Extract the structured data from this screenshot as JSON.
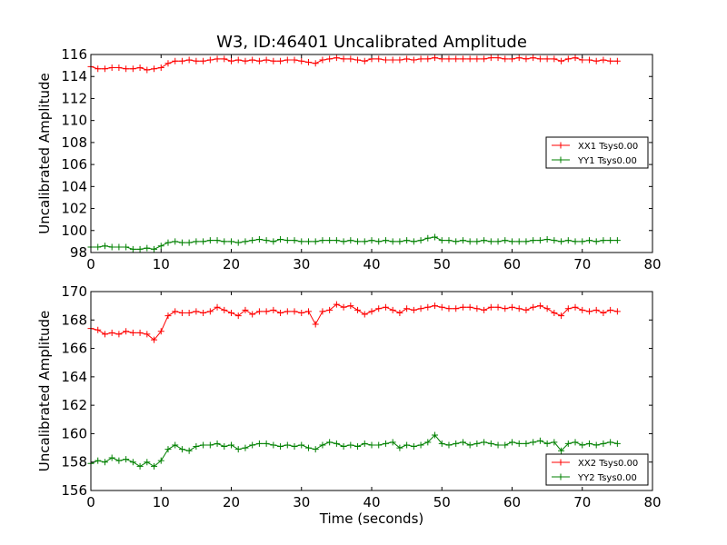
{
  "chart_data": [
    {
      "type": "line",
      "title": "W3, ID:46401 Uncalibrated Amplitude",
      "xlabel": "",
      "ylabel": "Uncalibrated Amplitude",
      "xlim": [
        0,
        80
      ],
      "ylim": [
        98,
        116
      ],
      "x_ticks": [
        "0",
        "10",
        "20",
        "30",
        "40",
        "50",
        "60",
        "70",
        "80"
      ],
      "y_ticks": [
        "98",
        "100",
        "102",
        "104",
        "106",
        "108",
        "110",
        "112",
        "114",
        "116"
      ],
      "grid": false,
      "legend_position": "right",
      "marker": "+",
      "series": [
        {
          "name": "XX1 Tsys0.00",
          "color": "#ff0000",
          "x": [
            0,
            1,
            2,
            3,
            4,
            5,
            6,
            7,
            8,
            9,
            10,
            11,
            12,
            13,
            14,
            15,
            16,
            17,
            18,
            19,
            20,
            21,
            22,
            23,
            24,
            25,
            26,
            27,
            28,
            29,
            30,
            31,
            32,
            33,
            34,
            35,
            36,
            37,
            38,
            39,
            40,
            41,
            42,
            43,
            44,
            45,
            46,
            47,
            48,
            49,
            50,
            51,
            52,
            53,
            54,
            55,
            56,
            57,
            58,
            59,
            60,
            61,
            62,
            63,
            64,
            65,
            66,
            67,
            68,
            69,
            70,
            71,
            72,
            73,
            74,
            75
          ],
          "values": [
            114.9,
            114.7,
            114.7,
            114.8,
            114.8,
            114.7,
            114.7,
            114.8,
            114.6,
            114.7,
            114.8,
            115.2,
            115.4,
            115.4,
            115.5,
            115.4,
            115.4,
            115.5,
            115.6,
            115.6,
            115.4,
            115.5,
            115.4,
            115.5,
            115.4,
            115.5,
            115.4,
            115.4,
            115.5,
            115.5,
            115.4,
            115.3,
            115.2,
            115.5,
            115.6,
            115.7,
            115.6,
            115.6,
            115.5,
            115.4,
            115.6,
            115.6,
            115.5,
            115.5,
            115.5,
            115.6,
            115.5,
            115.6,
            115.6,
            115.7,
            115.6,
            115.6,
            115.6,
            115.6,
            115.6,
            115.6,
            115.6,
            115.7,
            115.7,
            115.6,
            115.6,
            115.7,
            115.6,
            115.7,
            115.6,
            115.6,
            115.6,
            115.4,
            115.6,
            115.7,
            115.5,
            115.5,
            115.4,
            115.5,
            115.4,
            115.4
          ]
        },
        {
          "name": "YY1 Tsys0.00",
          "color": "#008000",
          "x": [
            0,
            1,
            2,
            3,
            4,
            5,
            6,
            7,
            8,
            9,
            10,
            11,
            12,
            13,
            14,
            15,
            16,
            17,
            18,
            19,
            20,
            21,
            22,
            23,
            24,
            25,
            26,
            27,
            28,
            29,
            30,
            31,
            32,
            33,
            34,
            35,
            36,
            37,
            38,
            39,
            40,
            41,
            42,
            43,
            44,
            45,
            46,
            47,
            48,
            49,
            50,
            51,
            52,
            53,
            54,
            55,
            56,
            57,
            58,
            59,
            60,
            61,
            62,
            63,
            64,
            65,
            66,
            67,
            68,
            69,
            70,
            71,
            72,
            73,
            74,
            75
          ],
          "values": [
            98.5,
            98.5,
            98.6,
            98.5,
            98.5,
            98.5,
            98.3,
            98.3,
            98.4,
            98.3,
            98.6,
            98.9,
            99.0,
            98.9,
            98.9,
            99.0,
            99.0,
            99.1,
            99.1,
            99.0,
            99.0,
            98.9,
            99.0,
            99.1,
            99.2,
            99.1,
            99.0,
            99.2,
            99.1,
            99.1,
            99.0,
            99.0,
            99.0,
            99.1,
            99.1,
            99.1,
            99.0,
            99.1,
            99.0,
            99.0,
            99.1,
            99.0,
            99.1,
            99.0,
            99.0,
            99.1,
            99.0,
            99.1,
            99.3,
            99.4,
            99.1,
            99.1,
            99.0,
            99.1,
            99.0,
            99.0,
            99.1,
            99.0,
            99.0,
            99.1,
            99.0,
            99.0,
            99.0,
            99.1,
            99.1,
            99.2,
            99.1,
            99.0,
            99.1,
            99.0,
            99.0,
            99.1,
            99.0,
            99.1,
            99.1,
            99.1
          ]
        }
      ]
    },
    {
      "type": "line",
      "title": "",
      "xlabel": "Time (seconds)",
      "ylabel": "Uncalibrated Amplitude",
      "xlim": [
        0,
        80
      ],
      "ylim": [
        156,
        170
      ],
      "x_ticks": [
        "0",
        "10",
        "20",
        "30",
        "40",
        "50",
        "60",
        "70",
        "80"
      ],
      "y_ticks": [
        "156",
        "158",
        "160",
        "162",
        "164",
        "166",
        "168",
        "170"
      ],
      "grid": false,
      "legend_position": "lower right",
      "marker": "+",
      "series": [
        {
          "name": "XX2 Tsys0.00",
          "color": "#ff0000",
          "x": [
            0,
            1,
            2,
            3,
            4,
            5,
            6,
            7,
            8,
            9,
            10,
            11,
            12,
            13,
            14,
            15,
            16,
            17,
            18,
            19,
            20,
            21,
            22,
            23,
            24,
            25,
            26,
            27,
            28,
            29,
            30,
            31,
            32,
            33,
            34,
            35,
            36,
            37,
            38,
            39,
            40,
            41,
            42,
            43,
            44,
            45,
            46,
            47,
            48,
            49,
            50,
            51,
            52,
            53,
            54,
            55,
            56,
            57,
            58,
            59,
            60,
            61,
            62,
            63,
            64,
            65,
            66,
            67,
            68,
            69,
            70,
            71,
            72,
            73,
            74,
            75
          ],
          "values": [
            167.4,
            167.3,
            167.0,
            167.1,
            167.0,
            167.2,
            167.1,
            167.1,
            167.0,
            166.6,
            167.2,
            168.3,
            168.6,
            168.5,
            168.5,
            168.6,
            168.5,
            168.6,
            168.9,
            168.7,
            168.5,
            168.3,
            168.7,
            168.4,
            168.6,
            168.6,
            168.7,
            168.5,
            168.6,
            168.6,
            168.5,
            168.6,
            167.7,
            168.6,
            168.7,
            169.1,
            168.9,
            169.0,
            168.7,
            168.4,
            168.6,
            168.8,
            168.9,
            168.7,
            168.5,
            168.8,
            168.7,
            168.8,
            168.9,
            169.0,
            168.9,
            168.8,
            168.8,
            168.9,
            168.9,
            168.8,
            168.7,
            168.9,
            168.9,
            168.8,
            168.9,
            168.8,
            168.7,
            168.9,
            169.0,
            168.8,
            168.5,
            168.3,
            168.8,
            168.9,
            168.7,
            168.6,
            168.7,
            168.5,
            168.7,
            168.6
          ]
        },
        {
          "name": "YY2 Tsys0.00",
          "color": "#008000",
          "x": [
            0,
            1,
            2,
            3,
            4,
            5,
            6,
            7,
            8,
            9,
            10,
            11,
            12,
            13,
            14,
            15,
            16,
            17,
            18,
            19,
            20,
            21,
            22,
            23,
            24,
            25,
            26,
            27,
            28,
            29,
            30,
            31,
            32,
            33,
            34,
            35,
            36,
            37,
            38,
            39,
            40,
            41,
            42,
            43,
            44,
            45,
            46,
            47,
            48,
            49,
            50,
            51,
            52,
            53,
            54,
            55,
            56,
            57,
            58,
            59,
            60,
            61,
            62,
            63,
            64,
            65,
            66,
            67,
            68,
            69,
            70,
            71,
            72,
            73,
            74,
            75
          ],
          "values": [
            157.9,
            158.1,
            158.0,
            158.3,
            158.1,
            158.2,
            158.0,
            157.7,
            158.0,
            157.7,
            158.1,
            158.9,
            159.2,
            158.9,
            158.8,
            159.1,
            159.2,
            159.2,
            159.3,
            159.1,
            159.2,
            158.9,
            159.0,
            159.2,
            159.3,
            159.3,
            159.2,
            159.1,
            159.2,
            159.1,
            159.2,
            159.0,
            158.9,
            159.2,
            159.4,
            159.3,
            159.1,
            159.2,
            159.1,
            159.3,
            159.2,
            159.2,
            159.3,
            159.4,
            159.0,
            159.2,
            159.1,
            159.2,
            159.4,
            159.9,
            159.3,
            159.2,
            159.3,
            159.4,
            159.2,
            159.3,
            159.4,
            159.3,
            159.2,
            159.2,
            159.4,
            159.3,
            159.3,
            159.4,
            159.5,
            159.3,
            159.4,
            158.8,
            159.3,
            159.4,
            159.2,
            159.3,
            159.2,
            159.3,
            159.4,
            159.3
          ]
        }
      ]
    }
  ]
}
